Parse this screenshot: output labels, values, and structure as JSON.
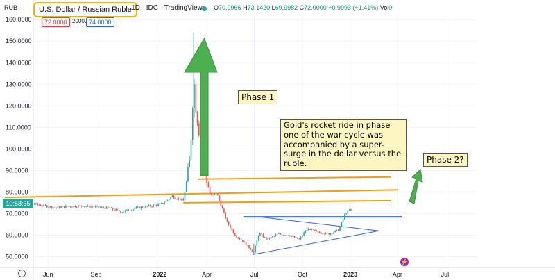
{
  "header": {
    "symbol_short": "RUB",
    "title": "U.S. Dollar / Russian Ruble",
    "meta": "· 1D · IDC · TradingView",
    "ohlc": [
      {
        "k": "O",
        "v": "70.9966"
      },
      {
        "k": "H",
        "v": "73.1420"
      },
      {
        "k": "L",
        "v": "69.9982"
      },
      {
        "k": "C",
        "v": "72.0000"
      },
      {
        "k": "",
        "v": "+0.9993 (+1.41%)"
      },
      {
        "k": "Vol",
        "v": "0"
      }
    ],
    "sell_price": "72.0000",
    "spread": "20000",
    "buy_price": "74.0000",
    "last_price_time": "10:58:35"
  },
  "chart_data": {
    "type": "candlestick",
    "instrument": "U.S. Dollar / Russian Ruble",
    "interval": "1D",
    "y_ticks": [
      "160.0000",
      "150.0000",
      "140.0000",
      "130.0000",
      "120.0000",
      "110.0000",
      "100.0000",
      "90.0000",
      "80.0000",
      "70.0000",
      "60.0000",
      "50.0000"
    ],
    "y_range": [
      45,
      162
    ],
    "x_ticks": [
      {
        "label": "Jun",
        "date": "2021-06-01"
      },
      {
        "label": "Sep",
        "date": "2021-09-01"
      },
      {
        "label": "2022",
        "date": "2022-01-01"
      },
      {
        "label": "Apr",
        "date": "2022-04-01"
      },
      {
        "label": "Jul",
        "date": "2022-07-01"
      },
      {
        "label": "Oct",
        "date": "2022-10-01"
      },
      {
        "label": "2023",
        "date": "2023-01-01"
      },
      {
        "label": "Apr",
        "date": "2023-04-01"
      },
      {
        "label": "Jul",
        "date": "2023-07-01"
      }
    ],
    "x_range": [
      "2021-03-01",
      "2023-09-01"
    ],
    "series": [
      {
        "closes": [
          {
            "d": "2021-03-10",
            "v": 76.5
          },
          {
            "d": "2021-04-01",
            "v": 75.5
          },
          {
            "d": "2021-04-25",
            "v": 75.0
          },
          {
            "d": "2021-05-20",
            "v": 73.8
          },
          {
            "d": "2021-06-15",
            "v": 72.8
          },
          {
            "d": "2021-07-10",
            "v": 73.4
          },
          {
            "d": "2021-08-05",
            "v": 73.6
          },
          {
            "d": "2021-09-01",
            "v": 73.0
          },
          {
            "d": "2021-09-25",
            "v": 72.6
          },
          {
            "d": "2021-10-20",
            "v": 70.8
          },
          {
            "d": "2021-11-15",
            "v": 72.5
          },
          {
            "d": "2021-12-10",
            "v": 73.4
          },
          {
            "d": "2022-01-05",
            "v": 74.5
          },
          {
            "d": "2022-01-25",
            "v": 78.0
          },
          {
            "d": "2022-02-15",
            "v": 76.0
          },
          {
            "d": "2022-02-28",
            "v": 95.0
          },
          {
            "d": "2022-03-07",
            "v": 133.0
          },
          {
            "d": "2022-03-11",
            "v": 120.0
          },
          {
            "d": "2022-03-20",
            "v": 103.0
          },
          {
            "d": "2022-03-28",
            "v": 90.0
          },
          {
            "d": "2022-04-08",
            "v": 78.0
          },
          {
            "d": "2022-04-20",
            "v": 79.5
          },
          {
            "d": "2022-05-10",
            "v": 66.0
          },
          {
            "d": "2022-05-25",
            "v": 60.0
          },
          {
            "d": "2022-06-10",
            "v": 57.0
          },
          {
            "d": "2022-06-30",
            "v": 52.0
          },
          {
            "d": "2022-07-10",
            "v": 61.0
          },
          {
            "d": "2022-07-25",
            "v": 58.0
          },
          {
            "d": "2022-08-15",
            "v": 60.5
          },
          {
            "d": "2022-09-05",
            "v": 60.0
          },
          {
            "d": "2022-09-25",
            "v": 58.0
          },
          {
            "d": "2022-10-10",
            "v": 63.0
          },
          {
            "d": "2022-10-30",
            "v": 61.5
          },
          {
            "d": "2022-11-20",
            "v": 60.5
          },
          {
            "d": "2022-12-10",
            "v": 62.5
          },
          {
            "d": "2022-12-22",
            "v": 70.0
          },
          {
            "d": "2023-01-03",
            "v": 72.0
          }
        ],
        "peak": {
          "d": "2022-03-07",
          "high": 154.0
        },
        "trough": {
          "d": "2022-06-30",
          "low": 51.0
        }
      }
    ],
    "last_close": 72.0
  },
  "annotations": {
    "phase1": "Phase 1",
    "phase2": "Phase 2?",
    "note": "Gold's rocket ride in phase one of the war cycle was accompanied by a super-surge in the dollar versus the ruble.",
    "colors": {
      "orange_line": "#f39c12",
      "blue_line": "#2962ff",
      "arrow": "#4caf50",
      "box": "#fdf6c3"
    }
  }
}
